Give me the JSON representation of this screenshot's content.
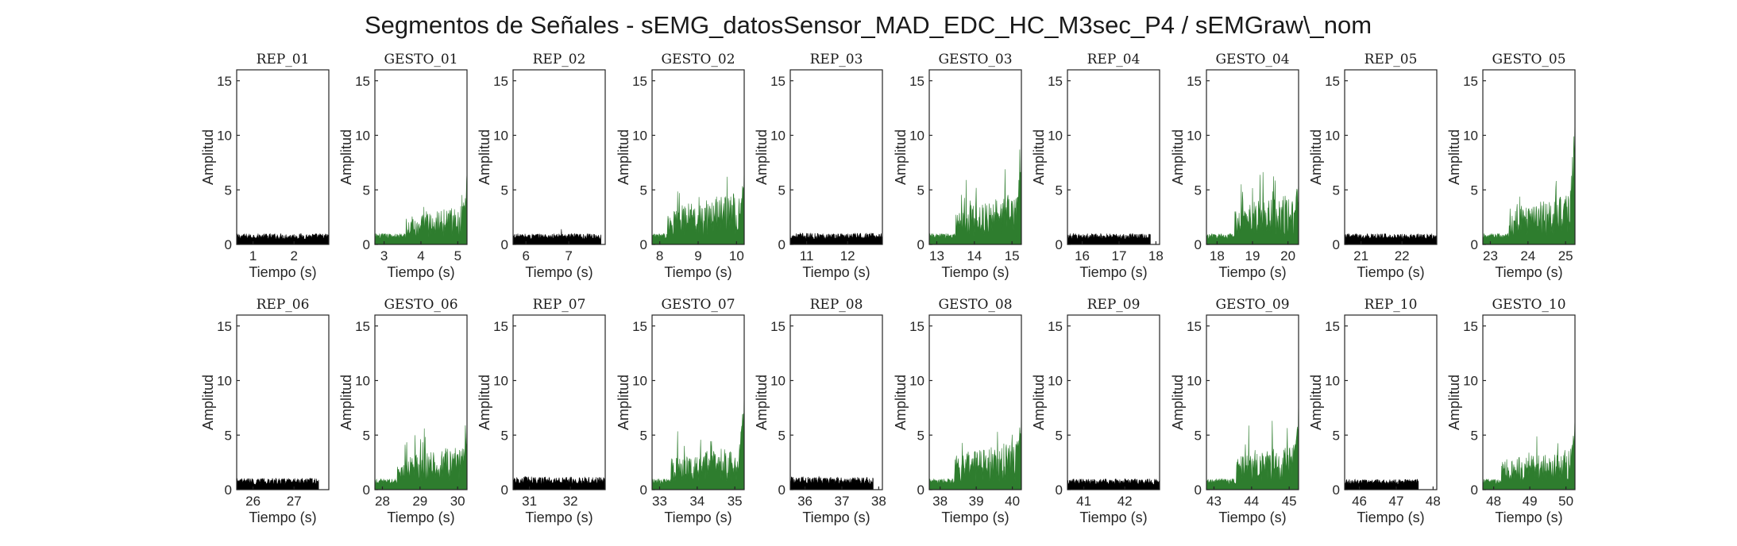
{
  "figure": {
    "suptitle": "Segmentos de Señales - sEMG_datosSensor_MAD_EDC_HC_M3sec_P4 / sEMGraw\\_nom",
    "colors": {
      "rep": "#000000",
      "gesto": "#2e7d2e"
    }
  },
  "chart_data": [
    {
      "type": "area",
      "title": "REP_01",
      "kind": "rep",
      "xlim": [
        0.6,
        2.85
      ],
      "xticks": [
        1,
        2
      ],
      "ylim": [
        0,
        16
      ],
      "yticks": [
        0,
        5,
        10,
        15
      ],
      "xlabel": "Tiempo (s)",
      "ylabel": "Amplitud",
      "signal": {
        "x_start": 0.6,
        "x_end": 2.85,
        "baseline": 0.45,
        "noise": 0.55,
        "end_peak": 0.9
      }
    },
    {
      "type": "area",
      "title": "GESTO_01",
      "kind": "gesto",
      "xlim": [
        2.75,
        5.25
      ],
      "xticks": [
        3,
        4,
        5
      ],
      "ylim": [
        0,
        16
      ],
      "yticks": [
        0,
        5,
        10,
        15
      ],
      "xlabel": "Tiempo (s)",
      "ylabel": "Amplitud",
      "signal": {
        "x_start": 2.75,
        "x_end": 5.25,
        "onset": 3.6,
        "baseline": 0.6,
        "activity": 1.9,
        "end_peak": 6.6
      }
    },
    {
      "type": "area",
      "title": "REP_02",
      "kind": "rep",
      "xlim": [
        5.7,
        7.85
      ],
      "xticks": [
        6,
        7,
        8
      ],
      "ylim": [
        0,
        16
      ],
      "yticks": [
        0,
        5,
        10,
        15
      ],
      "xlabel": "Tiempo (s)",
      "ylabel": "Amplitud",
      "signal": {
        "x_start": 5.7,
        "x_end": 7.75,
        "baseline": 0.45,
        "noise": 0.55,
        "end_peak": 1.4
      }
    },
    {
      "type": "area",
      "title": "GESTO_02",
      "kind": "gesto",
      "xlim": [
        7.8,
        10.2
      ],
      "xticks": [
        8,
        9,
        10
      ],
      "ylim": [
        0,
        16
      ],
      "yticks": [
        0,
        5,
        10,
        15
      ],
      "xlabel": "Tiempo (s)",
      "ylabel": "Amplitud",
      "signal": {
        "x_start": 7.8,
        "x_end": 10.2,
        "onset": 8.2,
        "baseline": 0.8,
        "activity": 2.5,
        "end_peak": 7.4
      }
    },
    {
      "type": "area",
      "title": "REP_03",
      "kind": "rep",
      "xlim": [
        10.6,
        12.85
      ],
      "xticks": [
        11,
        12
      ],
      "ylim": [
        0,
        16
      ],
      "yticks": [
        0,
        5,
        10,
        15
      ],
      "xlabel": "Tiempo (s)",
      "ylabel": "Amplitud",
      "signal": {
        "x_start": 10.6,
        "x_end": 12.85,
        "baseline": 0.45,
        "noise": 0.6,
        "end_peak": 0.9
      }
    },
    {
      "type": "area",
      "title": "GESTO_03",
      "kind": "gesto",
      "xlim": [
        12.8,
        15.25
      ],
      "xticks": [
        13,
        14,
        15
      ],
      "ylim": [
        0,
        16
      ],
      "yticks": [
        0,
        5,
        10,
        15
      ],
      "xlabel": "Tiempo (s)",
      "ylabel": "Amplitud",
      "signal": {
        "x_start": 12.8,
        "x_end": 15.25,
        "onset": 13.5,
        "baseline": 0.7,
        "activity": 2.6,
        "end_peak": 11.0
      }
    },
    {
      "type": "area",
      "title": "REP_04",
      "kind": "rep",
      "xlim": [
        15.6,
        18.1
      ],
      "xticks": [
        16,
        17,
        18
      ],
      "ylim": [
        0,
        16
      ],
      "yticks": [
        0,
        5,
        10,
        15
      ],
      "xlabel": "Tiempo (s)",
      "ylabel": "Amplitud",
      "signal": {
        "x_start": 15.6,
        "x_end": 17.85,
        "baseline": 0.45,
        "noise": 0.55,
        "end_peak": 0.9
      }
    },
    {
      "type": "area",
      "title": "GESTO_04",
      "kind": "gesto",
      "xlim": [
        17.7,
        20.3
      ],
      "xticks": [
        18,
        19,
        20
      ],
      "ylim": [
        0,
        16
      ],
      "yticks": [
        0,
        5,
        10,
        15
      ],
      "xlabel": "Tiempo (s)",
      "ylabel": "Amplitud",
      "signal": {
        "x_start": 17.7,
        "x_end": 20.3,
        "onset": 18.5,
        "baseline": 0.7,
        "activity": 2.6,
        "end_peak": 6.4
      }
    },
    {
      "type": "area",
      "title": "REP_05",
      "kind": "rep",
      "xlim": [
        20.6,
        22.85
      ],
      "xticks": [
        21,
        22
      ],
      "ylim": [
        0,
        16
      ],
      "yticks": [
        0,
        5,
        10,
        15
      ],
      "xlabel": "Tiempo (s)",
      "ylabel": "Amplitud",
      "signal": {
        "x_start": 20.6,
        "x_end": 22.85,
        "baseline": 0.45,
        "noise": 0.55,
        "end_peak": 0.9
      }
    },
    {
      "type": "area",
      "title": "GESTO_05",
      "kind": "gesto",
      "xlim": [
        22.8,
        25.25
      ],
      "xticks": [
        23,
        24,
        25
      ],
      "ylim": [
        0,
        16
      ],
      "yticks": [
        0,
        5,
        10,
        15
      ],
      "xlabel": "Tiempo (s)",
      "ylabel": "Amplitud",
      "signal": {
        "x_start": 22.8,
        "x_end": 25.25,
        "onset": 23.5,
        "baseline": 0.7,
        "activity": 2.5,
        "end_peak": 11.9
      }
    },
    {
      "type": "area",
      "title": "REP_06",
      "kind": "rep",
      "xlim": [
        25.6,
        27.85
      ],
      "xticks": [
        26,
        27,
        28
      ],
      "ylim": [
        0,
        16
      ],
      "yticks": [
        0,
        5,
        10,
        15
      ],
      "xlabel": "Tiempo (s)",
      "ylabel": "Amplitud",
      "signal": {
        "x_start": 25.6,
        "x_end": 27.6,
        "baseline": 0.45,
        "noise": 0.6,
        "end_peak": 0.9
      }
    },
    {
      "type": "area",
      "title": "GESTO_06",
      "kind": "gesto",
      "xlim": [
        27.8,
        30.25
      ],
      "xticks": [
        28,
        29,
        30
      ],
      "ylim": [
        0,
        16
      ],
      "yticks": [
        0,
        5,
        10,
        15
      ],
      "xlabel": "Tiempo (s)",
      "ylabel": "Amplitud",
      "signal": {
        "x_start": 27.8,
        "x_end": 30.25,
        "onset": 28.4,
        "baseline": 0.7,
        "activity": 2.2,
        "end_peak": 6.2
      }
    },
    {
      "type": "area",
      "title": "REP_07",
      "kind": "rep",
      "xlim": [
        30.6,
        32.85
      ],
      "xticks": [
        31,
        32
      ],
      "ylim": [
        0,
        16
      ],
      "yticks": [
        0,
        5,
        10,
        15
      ],
      "xlabel": "Tiempo (s)",
      "ylabel": "Amplitud",
      "signal": {
        "x_start": 30.6,
        "x_end": 32.85,
        "baseline": 0.5,
        "noise": 0.7,
        "end_peak": 1.0
      }
    },
    {
      "type": "area",
      "title": "GESTO_07",
      "kind": "gesto",
      "xlim": [
        32.8,
        35.25
      ],
      "xticks": [
        33,
        34,
        35
      ],
      "ylim": [
        0,
        16
      ],
      "yticks": [
        0,
        5,
        10,
        15
      ],
      "xlabel": "Tiempo (s)",
      "ylabel": "Amplitud",
      "signal": {
        "x_start": 32.8,
        "x_end": 35.25,
        "onset": 33.3,
        "baseline": 0.7,
        "activity": 2.2,
        "end_peak": 9.4
      }
    },
    {
      "type": "area",
      "title": "REP_08",
      "kind": "rep",
      "xlim": [
        35.6,
        38.1
      ],
      "xticks": [
        36,
        37,
        38
      ],
      "ylim": [
        0,
        16
      ],
      "yticks": [
        0,
        5,
        10,
        15
      ],
      "xlabel": "Tiempo (s)",
      "ylabel": "Amplitud",
      "signal": {
        "x_start": 35.6,
        "x_end": 37.85,
        "baseline": 0.5,
        "noise": 0.7,
        "end_peak": 1.0
      }
    },
    {
      "type": "area",
      "title": "GESTO_08",
      "kind": "gesto",
      "xlim": [
        37.7,
        40.25
      ],
      "xticks": [
        38,
        39,
        40
      ],
      "ylim": [
        0,
        16
      ],
      "yticks": [
        0,
        5,
        10,
        15
      ],
      "xlabel": "Tiempo (s)",
      "ylabel": "Amplitud",
      "signal": {
        "x_start": 37.7,
        "x_end": 40.25,
        "onset": 38.4,
        "baseline": 0.7,
        "activity": 2.5,
        "end_peak": 8.0
      }
    },
    {
      "type": "area",
      "title": "REP_09",
      "kind": "rep",
      "xlim": [
        40.6,
        42.85
      ],
      "xticks": [
        41,
        42
      ],
      "ylim": [
        0,
        16
      ],
      "yticks": [
        0,
        5,
        10,
        15
      ],
      "xlabel": "Tiempo (s)",
      "ylabel": "Amplitud",
      "signal": {
        "x_start": 40.6,
        "x_end": 42.85,
        "baseline": 0.45,
        "noise": 0.55,
        "end_peak": 0.9
      }
    },
    {
      "type": "area",
      "title": "GESTO_09",
      "kind": "gesto",
      "xlim": [
        42.8,
        45.25
      ],
      "xticks": [
        43,
        44,
        45
      ],
      "ylim": [
        0,
        16
      ],
      "yticks": [
        0,
        5,
        10,
        15
      ],
      "xlabel": "Tiempo (s)",
      "ylabel": "Amplitud",
      "signal": {
        "x_start": 42.8,
        "x_end": 45.25,
        "onset": 43.6,
        "baseline": 0.7,
        "activity": 2.3,
        "end_peak": 8.8
      }
    },
    {
      "type": "area",
      "title": "REP_10",
      "kind": "rep",
      "xlim": [
        45.6,
        48.1
      ],
      "xticks": [
        46,
        47,
        48
      ],
      "ylim": [
        0,
        16
      ],
      "yticks": [
        0,
        5,
        10,
        15
      ],
      "xlabel": "Tiempo (s)",
      "ylabel": "Amplitud",
      "signal": {
        "x_start": 45.6,
        "x_end": 47.6,
        "baseline": 0.45,
        "noise": 0.5,
        "end_peak": 0.8
      }
    },
    {
      "type": "area",
      "title": "GESTO_10",
      "kind": "gesto",
      "xlim": [
        47.7,
        50.25
      ],
      "xticks": [
        48,
        49,
        50
      ],
      "ylim": [
        0,
        16
      ],
      "yticks": [
        0,
        5,
        10,
        15
      ],
      "xlabel": "Tiempo (s)",
      "ylabel": "Amplitud",
      "signal": {
        "x_start": 47.7,
        "x_end": 50.25,
        "onset": 48.2,
        "baseline": 0.7,
        "activity": 2.0,
        "end_peak": 6.8
      }
    }
  ]
}
